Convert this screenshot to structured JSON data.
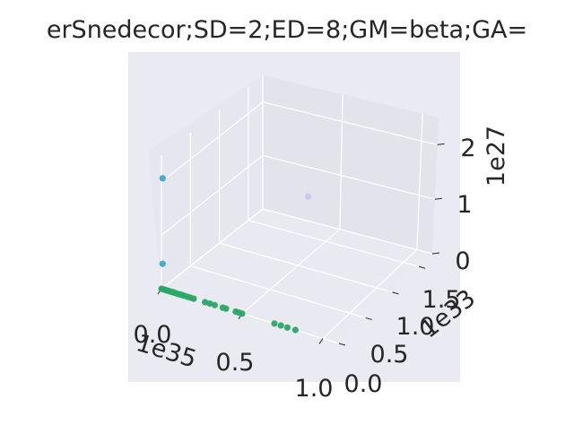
{
  "chart_data": {
    "type": "scatter",
    "projection": "3d",
    "title": "erSnedecor;SD=2;ED=8;GM=beta;GA=",
    "x_axis": {
      "ticks": [
        "0.0",
        "0.5",
        "1.0"
      ],
      "offset_label": "1e35"
    },
    "y_axis": {
      "ticks": [
        "0.0",
        "0.5",
        "1.0",
        "1.5"
      ],
      "offset_label": "1e33"
    },
    "z_axis": {
      "ticks": [
        "0",
        "1",
        "2"
      ],
      "offset_label": "1e27"
    },
    "grid": true,
    "background": "#eaeaf2",
    "series": [
      {
        "color": "#3aa9cf",
        "points": [
          {
            "x": 0.0,
            "y": 0.02,
            "z": 2.05
          },
          {
            "x": 0.0,
            "y": 0.02,
            "z": 0.45
          }
        ]
      },
      {
        "color": "#c9c6ee",
        "points": [
          {
            "x": 0.4,
            "y": 1.45,
            "z": 0.8
          }
        ]
      },
      {
        "color": "#2aa865",
        "points": [
          {
            "x": 0.0,
            "y": 0.0,
            "z": 0.0
          },
          {
            "x": 0.01,
            "y": 0.0,
            "z": 0.0
          },
          {
            "x": 0.02,
            "y": 0.0,
            "z": 0.0
          },
          {
            "x": 0.03,
            "y": 0.0,
            "z": 0.0
          },
          {
            "x": 0.04,
            "y": 0.0,
            "z": 0.0
          },
          {
            "x": 0.05,
            "y": 0.0,
            "z": 0.0
          },
          {
            "x": 0.06,
            "y": 0.0,
            "z": 0.0
          },
          {
            "x": 0.07,
            "y": 0.0,
            "z": 0.0
          },
          {
            "x": 0.08,
            "y": 0.0,
            "z": 0.0
          },
          {
            "x": 0.095,
            "y": 0.0,
            "z": 0.0
          },
          {
            "x": 0.11,
            "y": 0.0,
            "z": 0.0
          },
          {
            "x": 0.125,
            "y": 0.0,
            "z": 0.0
          },
          {
            "x": 0.14,
            "y": 0.0,
            "z": 0.0
          },
          {
            "x": 0.16,
            "y": 0.0,
            "z": 0.0
          },
          {
            "x": 0.18,
            "y": 0.0,
            "z": 0.0
          },
          {
            "x": 0.2,
            "y": 0.0,
            "z": 0.0
          },
          {
            "x": 0.27,
            "y": 0.0,
            "z": 0.0
          },
          {
            "x": 0.3,
            "y": 0.0,
            "z": 0.0
          },
          {
            "x": 0.33,
            "y": 0.0,
            "z": 0.0
          },
          {
            "x": 0.38,
            "y": 0.0,
            "z": 0.0
          },
          {
            "x": 0.4,
            "y": 0.0,
            "z": 0.0
          },
          {
            "x": 0.46,
            "y": 0.0,
            "z": 0.0
          },
          {
            "x": 0.48,
            "y": 0.0,
            "z": 0.0
          },
          {
            "x": 0.5,
            "y": 0.0,
            "z": 0.0
          },
          {
            "x": 0.7,
            "y": 0.0,
            "z": 0.0
          },
          {
            "x": 0.74,
            "y": 0.0,
            "z": 0.0
          },
          {
            "x": 0.78,
            "y": 0.0,
            "z": 0.0
          },
          {
            "x": 0.83,
            "y": 0.0,
            "z": 0.0
          }
        ]
      }
    ]
  }
}
